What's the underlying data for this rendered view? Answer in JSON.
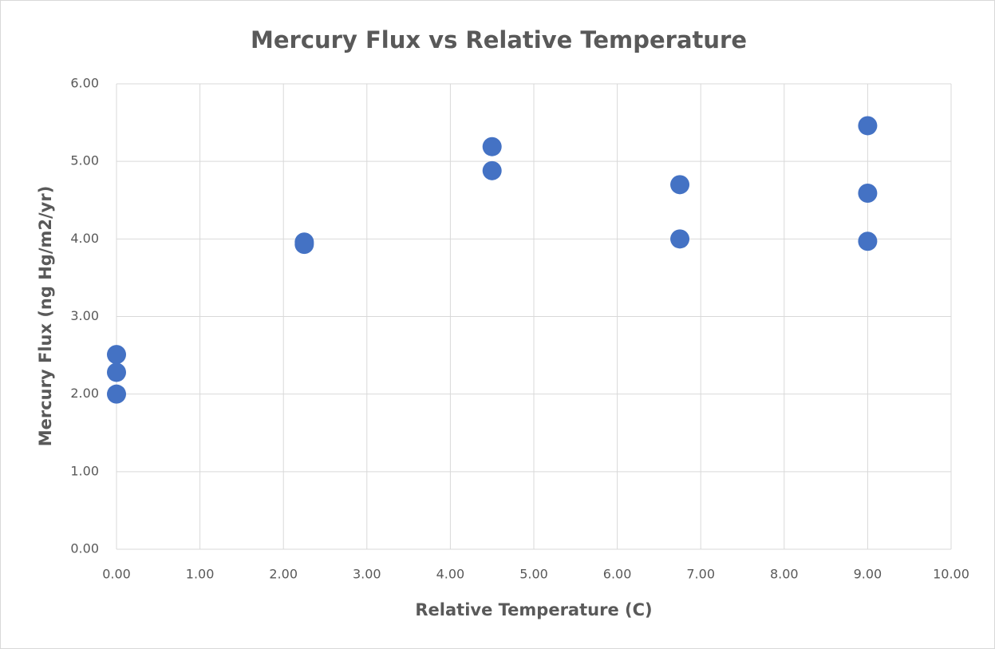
{
  "chart_data": {
    "type": "scatter",
    "title": "Mercury Flux vs Relative Temperature",
    "xlabel": "Relative Temperature (C)",
    "ylabel": "Mercury Flux (ng Hg/m2/yr)",
    "series": [
      {
        "color": "#4472c4",
        "x": [
          0,
          0,
          0,
          2.25,
          2.25,
          4.5,
          4.5,
          6.75,
          6.75,
          9,
          9,
          9
        ],
        "values": [
          2.51,
          2.28,
          2.0,
          3.96,
          3.93,
          5.19,
          4.88,
          4.7,
          4.0,
          5.46,
          4.59,
          3.97
        ]
      }
    ],
    "xlim": [
      0,
      10
    ],
    "xticks": [
      {
        "value": 0,
        "label": "0.00"
      },
      {
        "value": 1,
        "label": "1.00"
      },
      {
        "value": 2,
        "label": "2.00"
      },
      {
        "value": 3,
        "label": "3.00"
      },
      {
        "value": 4,
        "label": "4.00"
      },
      {
        "value": 5,
        "label": "5.00"
      },
      {
        "value": 6,
        "label": "6.00"
      },
      {
        "value": 7,
        "label": "7.00"
      },
      {
        "value": 8,
        "label": "8.00"
      },
      {
        "value": 9,
        "label": "9.00"
      },
      {
        "value": 10,
        "label": "10.00"
      }
    ],
    "ylim": [
      0,
      6
    ],
    "yticks": [
      {
        "value": 0,
        "label": "0.00"
      },
      {
        "value": 1,
        "label": "1.00"
      },
      {
        "value": 2,
        "label": "2.00"
      },
      {
        "value": 3,
        "label": "3.00"
      },
      {
        "value": 4,
        "label": "4.00"
      },
      {
        "value": 5,
        "label": "5.00"
      },
      {
        "value": 6,
        "label": "6.00"
      }
    ],
    "grid": true
  }
}
